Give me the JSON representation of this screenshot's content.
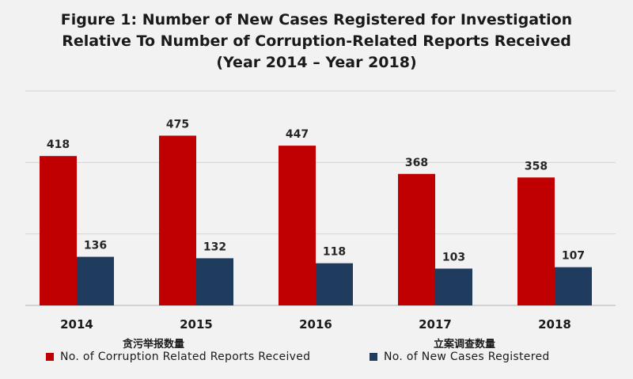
{
  "title": {
    "line1": "Figure 1: Number of New Cases Registered for Investigation",
    "line2": "Relative To Number of Corruption-Related Reports Received",
    "line3": "(Year 2014 – Year 2018)"
  },
  "legend": {
    "reports_cn": "贪污举报数量",
    "reports_label": "No. of Corruption Related Reports Received",
    "cases_cn": "立案调查数量",
    "cases_label": "No. of New Cases Registered"
  },
  "colors": {
    "reports": "#c00000",
    "cases": "#1f3c5e",
    "grid": "#d4d4d4",
    "axis": "#bfbfbf"
  },
  "chart_data": {
    "type": "bar",
    "categories": [
      "2014",
      "2015",
      "2016",
      "2017",
      "2018"
    ],
    "series": [
      {
        "name": "No. of Corruption Related Reports Received",
        "values": [
          418,
          475,
          447,
          368,
          358
        ]
      },
      {
        "name": "No. of New Cases Registered",
        "values": [
          136,
          132,
          118,
          103,
          107
        ]
      }
    ],
    "title": "Figure 1: Number of New Cases Registered for Investigation Relative To Number of Corruption-Related Reports Received (Year 2014 – Year 2018)",
    "xlabel": "",
    "ylabel": "",
    "ylim": [
      0,
      600
    ],
    "grid": true,
    "legend_position": "bottom"
  }
}
